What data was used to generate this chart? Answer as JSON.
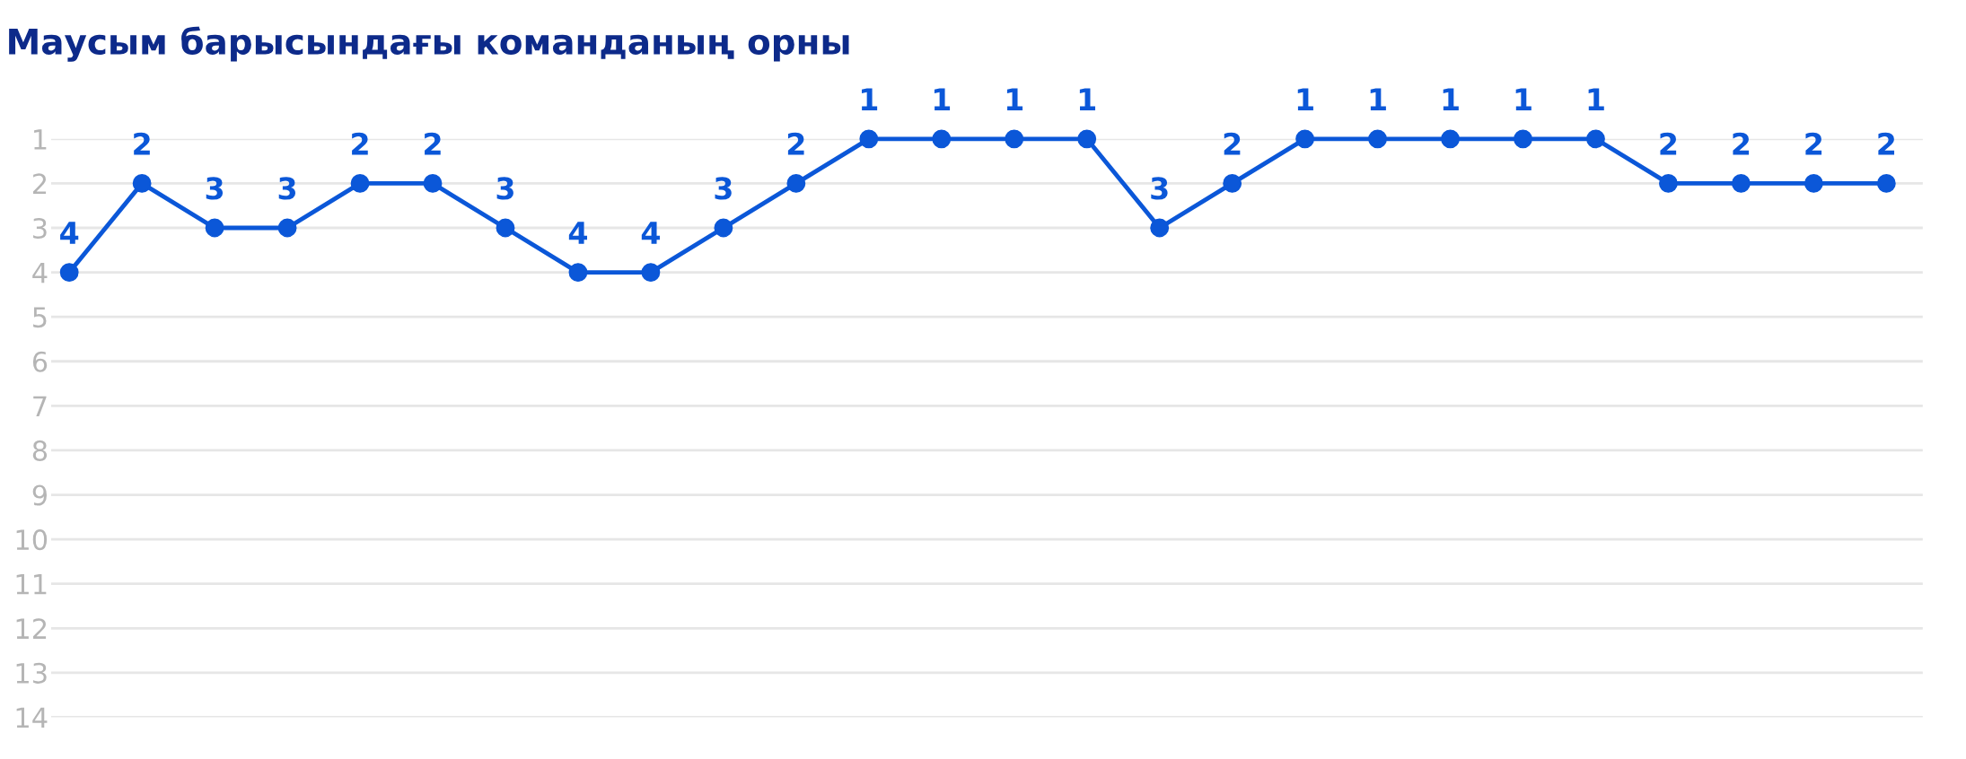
{
  "chart_data": {
    "type": "line",
    "title": "Маусым барысындағы команданың орны",
    "categories": [
      null,
      null,
      null,
      null,
      null,
      null,
      null,
      null,
      null,
      null,
      null,
      null,
      null,
      null,
      null,
      null,
      null,
      null,
      null,
      null,
      null,
      null,
      null,
      null,
      null,
      null
    ],
    "series": [
      {
        "color": "#0b57d8",
        "values": [
          4,
          2,
          3,
          3,
          2,
          2,
          3,
          4,
          4,
          3,
          2,
          1,
          1,
          1,
          1,
          3,
          2,
          1,
          1,
          1,
          1,
          1,
          2,
          2,
          2,
          2
        ]
      }
    ],
    "ylim": [
      14,
      1
    ],
    "yticks": [
      1,
      2,
      3,
      4,
      5,
      6,
      7,
      8,
      9,
      10,
      11,
      12,
      13,
      14
    ],
    "grid": "y",
    "marker": "circle",
    "line_style": "solid",
    "data_labels": true,
    "tick_labels": "y",
    "legend": false
  }
}
